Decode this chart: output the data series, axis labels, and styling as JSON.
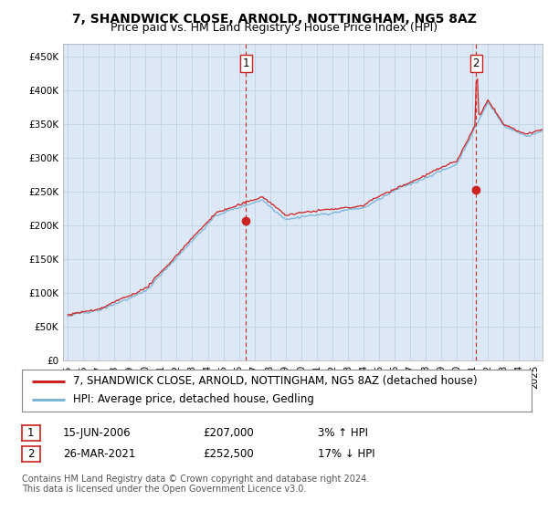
{
  "title": "7, SHANDWICK CLOSE, ARNOLD, NOTTINGHAM, NG5 8AZ",
  "subtitle": "Price paid vs. HM Land Registry's House Price Index (HPI)",
  "ylabel_ticks": [
    "£0",
    "£50K",
    "£100K",
    "£150K",
    "£200K",
    "£250K",
    "£300K",
    "£350K",
    "£400K",
    "£450K"
  ],
  "ytick_values": [
    0,
    50000,
    100000,
    150000,
    200000,
    250000,
    300000,
    350000,
    400000,
    450000
  ],
  "ylim": [
    0,
    470000
  ],
  "xlim_start": 1994.7,
  "xlim_end": 2025.5,
  "sale1_x": 2006.458,
  "sale1_y": 207000,
  "sale1_label": "1",
  "sale2_x": 2021.23,
  "sale2_y": 252500,
  "sale2_label": "2",
  "hpi_color": "#7ab5d8",
  "price_color": "#cc2222",
  "vline_color": "#cc2222",
  "chart_bg_color": "#dce8f5",
  "background_color": "#ffffff",
  "grid_color": "#b8cfe0",
  "legend_line1": "7, SHANDWICK CLOSE, ARNOLD, NOTTINGHAM, NG5 8AZ (detached house)",
  "legend_line2": "HPI: Average price, detached house, Gedling",
  "table_row1_num": "1",
  "table_row1_date": "15-JUN-2006",
  "table_row1_price": "£207,000",
  "table_row1_hpi": "3% ↑ HPI",
  "table_row2_num": "2",
  "table_row2_date": "26-MAR-2021",
  "table_row2_price": "£252,500",
  "table_row2_hpi": "17% ↓ HPI",
  "footer": "Contains HM Land Registry data © Crown copyright and database right 2024.\nThis data is licensed under the Open Government Licence v3.0.",
  "title_fontsize": 10,
  "subtitle_fontsize": 9,
  "tick_fontsize": 7.5,
  "legend_fontsize": 8.5,
  "table_fontsize": 8.5,
  "footer_fontsize": 7.0
}
